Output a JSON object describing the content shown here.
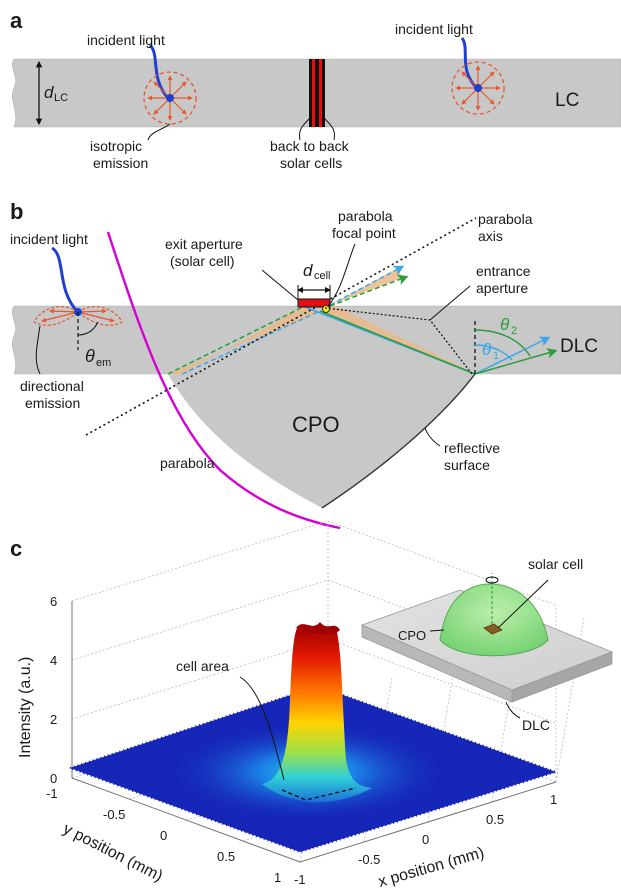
{
  "panel_a": {
    "letter": "a",
    "d_symbol": "d",
    "d_subscript": "LC",
    "incident_left": "incident light",
    "incident_right": "incident light",
    "lc_label": "LC",
    "isotropic_line1": "isotropic",
    "isotropic_line2": "emission",
    "back_line1": "back to back",
    "back_line2": "solar cells"
  },
  "panel_b": {
    "letter": "b",
    "incident": "incident light",
    "exit_line1": "exit aperture",
    "exit_line2": "(solar cell)",
    "d_symbol": "d",
    "d_subscript": "cell",
    "focal_line1": "parabola",
    "focal_line2": "focal point",
    "axis_line1": "parabola",
    "axis_line2": "axis",
    "entrance_line1": "entrance",
    "entrance_line2": "aperture",
    "theta_symbol": "θ",
    "theta_em_sub": "em",
    "theta1_sub": "1",
    "theta2_sub": "2",
    "dlc_label": "DLC",
    "directional_line1": "directional",
    "directional_line2": "emission",
    "cpo_label": "CPO",
    "parabola_label": "parabola",
    "reflective_line1": "reflective",
    "reflective_line2": "surface"
  },
  "panel_c": {
    "letter": "c",
    "zlabel": "Intensity (a.u.)",
    "xlabel": "x position (mm)",
    "ylabel": "y position (mm)",
    "cell_area": "cell area",
    "inset_solar_cell": "solar cell",
    "inset_cpo": "CPO",
    "inset_dlc": "DLC"
  },
  "colors": {
    "slab": "#c8c8c8",
    "blue_ray": "#1f5fd9",
    "emission_orange": "#e8572a",
    "parabola_magenta": "#d400d4",
    "solar_red": "#e01010",
    "ray_green": "#2a9d3a",
    "ray_cyan": "#3aa7e8",
    "cone_tan": "#e9b98a"
  },
  "chart_data": {
    "type": "surface",
    "title": "",
    "xlabel": "x position (mm)",
    "ylabel": "y position (mm)",
    "zlabel": "Intensity (a.u.)",
    "x_ticks": [
      -1,
      -0.5,
      0,
      0.5,
      1
    ],
    "y_ticks": [
      -1,
      -0.5,
      0,
      0.5,
      1
    ],
    "z_ticks": [
      0,
      2,
      4,
      6
    ],
    "xlim": [
      -1,
      1
    ],
    "ylim": [
      -1,
      1
    ],
    "zlim": [
      0,
      6
    ],
    "background_level": 0.7,
    "peak_level": 5.0,
    "peak_location": [
      0,
      0
    ],
    "grid": true,
    "colormap": "jet"
  }
}
